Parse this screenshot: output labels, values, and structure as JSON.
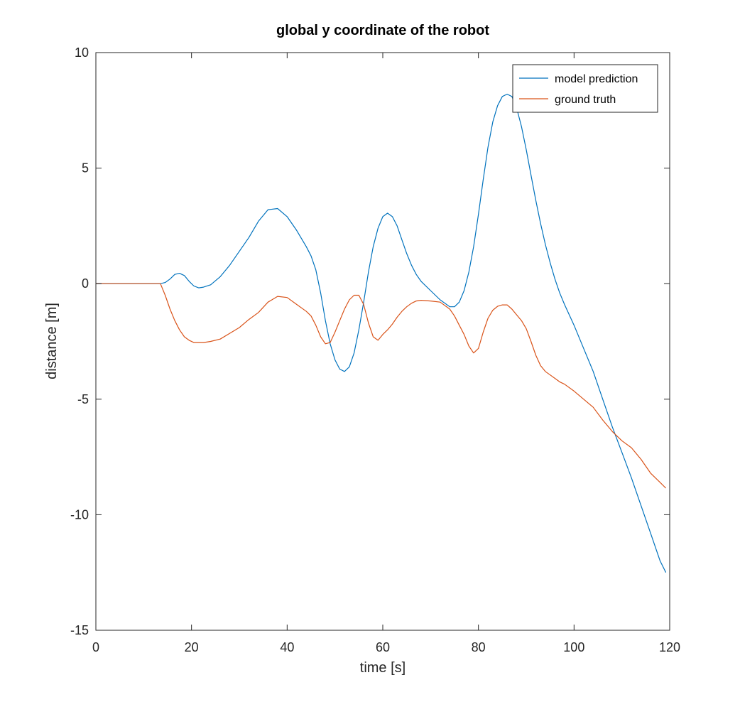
{
  "chart_data": {
    "type": "line",
    "title": "global y coordinate of the robot",
    "xlabel": "time [s]",
    "ylabel": "distance [m]",
    "xlim": [
      0,
      120
    ],
    "ylim": [
      -15,
      10
    ],
    "xticks": [
      0,
      20,
      40,
      60,
      80,
      100,
      120
    ],
    "yticks": [
      -15,
      -10,
      -5,
      0,
      5,
      10
    ],
    "grid": false,
    "legend_position": "top-right",
    "series": [
      {
        "name": "model prediction",
        "color": "#0072bd",
        "x": [
          0,
          13.5,
          14.5,
          15.5,
          16.5,
          17.5,
          18.5,
          19.5,
          20.5,
          21.5,
          22.5,
          24,
          26,
          28,
          30,
          32,
          34,
          36,
          38,
          40,
          42,
          44,
          45,
          46,
          47,
          48,
          49,
          50,
          51,
          52,
          53,
          54,
          55,
          56,
          57,
          58,
          59,
          60,
          61,
          62,
          63,
          64,
          65,
          66,
          67,
          68,
          70,
          72,
          74,
          75,
          76,
          77,
          78,
          79,
          80,
          81,
          82,
          83,
          84,
          85,
          86,
          87,
          88,
          89,
          90,
          91,
          92,
          93,
          94,
          95,
          96,
          97,
          98,
          100,
          102,
          104,
          106,
          108,
          110,
          112,
          114,
          116,
          118,
          119.2
        ],
        "y": [
          0,
          0,
          0.05,
          0.2,
          0.4,
          0.45,
          0.35,
          0.1,
          -0.1,
          -0.18,
          -0.15,
          -0.05,
          0.3,
          0.8,
          1.4,
          2.0,
          2.7,
          3.2,
          3.25,
          2.9,
          2.3,
          1.6,
          1.2,
          0.6,
          -0.4,
          -1.6,
          -2.6,
          -3.3,
          -3.7,
          -3.8,
          -3.6,
          -3.0,
          -2.0,
          -0.8,
          0.5,
          1.6,
          2.4,
          2.9,
          3.05,
          2.9,
          2.5,
          1.9,
          1.3,
          0.8,
          0.4,
          0.1,
          -0.3,
          -0.7,
          -1.0,
          -1.0,
          -0.8,
          -0.3,
          0.5,
          1.6,
          3.0,
          4.5,
          5.9,
          7.0,
          7.7,
          8.1,
          8.2,
          8.1,
          7.6,
          6.8,
          5.8,
          4.7,
          3.6,
          2.6,
          1.7,
          0.9,
          0.2,
          -0.4,
          -0.9,
          -1.8,
          -2.8,
          -3.8,
          -5.0,
          -6.2,
          -7.3,
          -8.4,
          -9.6,
          -10.8,
          -12.0,
          -12.5
        ]
      },
      {
        "name": "ground truth",
        "color": "#d95319",
        "x": [
          0,
          13.5,
          14.5,
          15.5,
          16.5,
          17.5,
          18.5,
          19.5,
          20.5,
          21.5,
          22.5,
          24,
          26,
          28,
          30,
          32,
          34,
          36,
          38,
          40,
          42,
          44,
          45,
          46,
          47,
          48,
          49,
          50,
          51,
          52,
          53,
          54,
          55,
          56,
          57,
          58,
          59,
          60,
          61,
          62,
          63,
          64,
          65,
          66,
          67,
          68,
          70,
          72,
          74,
          75,
          76,
          77,
          78,
          79,
          80,
          81,
          82,
          83,
          84,
          85,
          86,
          87,
          88,
          89,
          90,
          91,
          92,
          93,
          94,
          95,
          96,
          97,
          98,
          100,
          102,
          104,
          106,
          108,
          110,
          112,
          114,
          116,
          118,
          119.2
        ],
        "y": [
          0,
          0,
          -0.5,
          -1.1,
          -1.6,
          -2.0,
          -2.3,
          -2.45,
          -2.55,
          -2.55,
          -2.55,
          -2.5,
          -2.4,
          -2.15,
          -1.9,
          -1.55,
          -1.25,
          -0.8,
          -0.55,
          -0.6,
          -0.9,
          -1.2,
          -1.4,
          -1.8,
          -2.3,
          -2.6,
          -2.55,
          -2.1,
          -1.6,
          -1.1,
          -0.7,
          -0.5,
          -0.5,
          -0.9,
          -1.7,
          -2.3,
          -2.45,
          -2.2,
          -2.0,
          -1.75,
          -1.45,
          -1.2,
          -1.0,
          -0.85,
          -0.75,
          -0.72,
          -0.75,
          -0.8,
          -1.1,
          -1.4,
          -1.8,
          -2.2,
          -2.7,
          -3.0,
          -2.8,
          -2.1,
          -1.5,
          -1.15,
          -0.98,
          -0.92,
          -0.92,
          -1.1,
          -1.35,
          -1.6,
          -1.95,
          -2.5,
          -3.1,
          -3.55,
          -3.8,
          -3.95,
          -4.1,
          -4.25,
          -4.35,
          -4.65,
          -5.0,
          -5.35,
          -5.9,
          -6.4,
          -6.8,
          -7.1,
          -7.6,
          -8.2,
          -8.6,
          -8.85
        ]
      }
    ]
  }
}
